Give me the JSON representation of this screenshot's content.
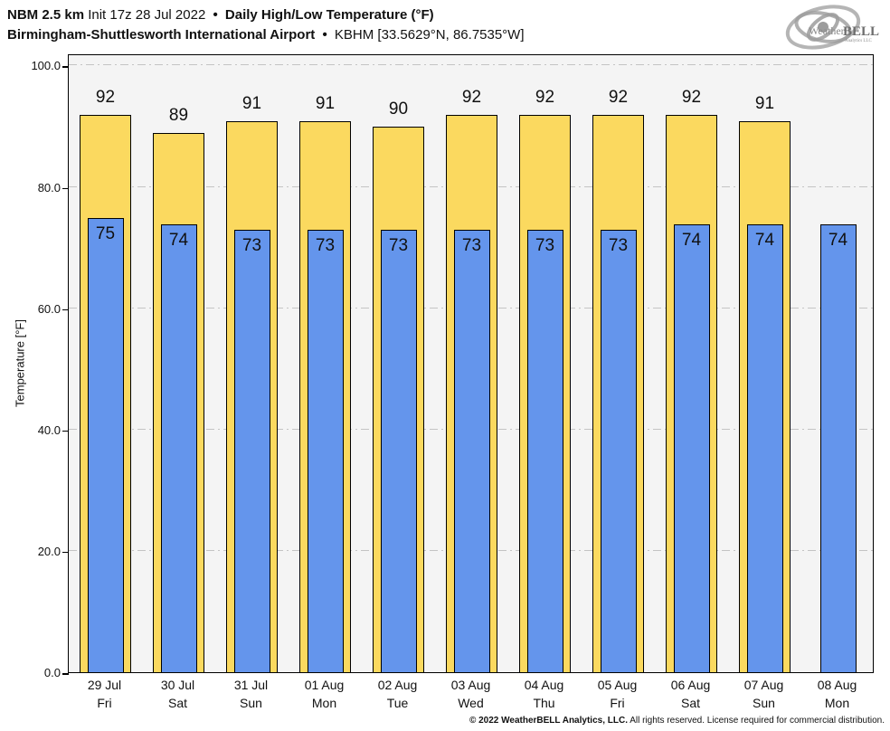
{
  "header": {
    "model": "NBM 2.5 km",
    "init": "Init 17z 28 Jul 2022",
    "sep": "•",
    "product": "Daily High/Low Temperature (°F)",
    "station": "Birmingham-Shuttlesworth International Airport",
    "station_id": "KBHM [33.5629°N, 86.7535°W]"
  },
  "logo": {
    "weather": "Weather",
    "bell": "BELL",
    "subtext": "Analytics LLC"
  },
  "chart_data": {
    "type": "bar",
    "title": "Daily High/Low Temperature (°F)",
    "subtitle": "Birmingham-Shuttlesworth International Airport • KBHM [33.5629°N, 86.7535°W]",
    "xlabel": "",
    "ylabel": "Temperature [°F]",
    "ylim": [
      0,
      102
    ],
    "yticks": [
      0,
      20,
      40,
      60,
      80,
      100
    ],
    "ytick_labels": [
      "0.0",
      "20.0",
      "40.0",
      "60.0",
      "80.0",
      "100.0"
    ],
    "grid": "horizontal dash-dot lines at 20, 40, 60, 80, 100",
    "legend": "none",
    "plot_bg": "#f4f4f4",
    "bar_border": "#000000",
    "categories": [
      {
        "date": "29 Jul",
        "day": "Fri"
      },
      {
        "date": "30 Jul",
        "day": "Sat"
      },
      {
        "date": "31 Jul",
        "day": "Sun"
      },
      {
        "date": "01 Aug",
        "day": "Mon"
      },
      {
        "date": "02 Aug",
        "day": "Tue"
      },
      {
        "date": "03 Aug",
        "day": "Wed"
      },
      {
        "date": "04 Aug",
        "day": "Thu"
      },
      {
        "date": "05 Aug",
        "day": "Fri"
      },
      {
        "date": "06 Aug",
        "day": "Sat"
      },
      {
        "date": "07 Aug",
        "day": "Sun"
      },
      {
        "date": "08 Aug",
        "day": "Mon"
      }
    ],
    "series": [
      {
        "name": "High",
        "color": "#FBD95F",
        "values": [
          92,
          89,
          91,
          91,
          90,
          92,
          92,
          92,
          92,
          91,
          null
        ]
      },
      {
        "name": "Low",
        "color": "#6495EC",
        "values": [
          75,
          74,
          73,
          73,
          73,
          73,
          73,
          73,
          74,
          74,
          74
        ]
      }
    ]
  },
  "footer": {
    "bold": "© 2022 WeatherBELL Analytics, LLC.",
    "regular": "All rights reserved. License required for commercial distribution."
  }
}
